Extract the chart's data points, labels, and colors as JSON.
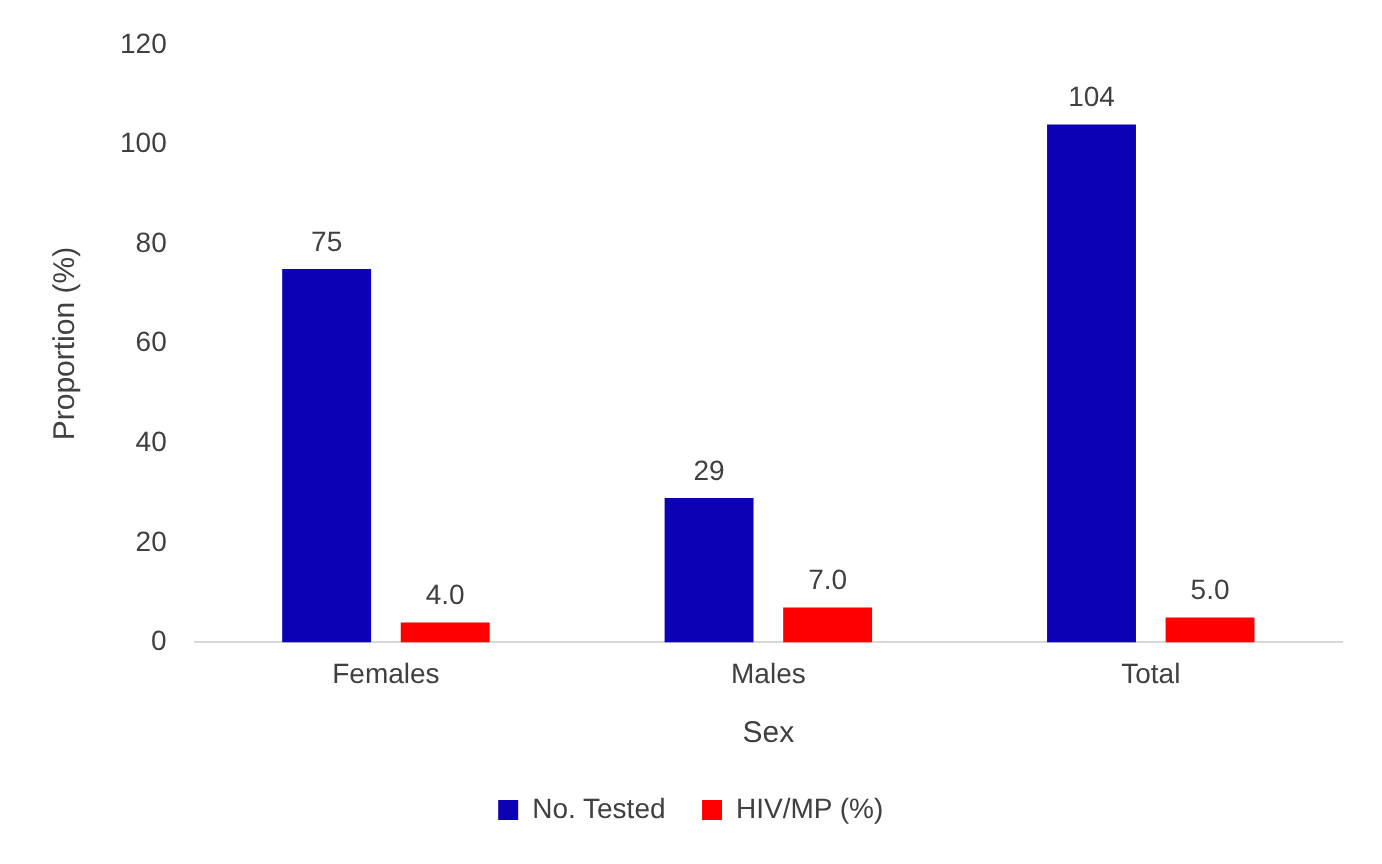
{
  "chart_data": {
    "type": "bar",
    "xlabel": "Sex",
    "ylabel": "Proportion (%)",
    "categories": [
      "Females",
      "Males",
      "Total"
    ],
    "series": [
      {
        "name": "No. Tested",
        "color": "#0c00b4",
        "values": [
          75,
          29,
          104
        ],
        "value_labels": [
          "75",
          "29",
          "104"
        ]
      },
      {
        "name": "HIV/MP (%)",
        "color": "#ff0000",
        "values": [
          4.0,
          7.0,
          5.0
        ],
        "value_labels": [
          "4.0",
          "7.0",
          "5.0"
        ]
      }
    ],
    "ylim": [
      0,
      120
    ],
    "yticks": [
      0,
      20,
      40,
      60,
      80,
      100,
      120
    ],
    "grid": false,
    "legend": "bottom"
  }
}
